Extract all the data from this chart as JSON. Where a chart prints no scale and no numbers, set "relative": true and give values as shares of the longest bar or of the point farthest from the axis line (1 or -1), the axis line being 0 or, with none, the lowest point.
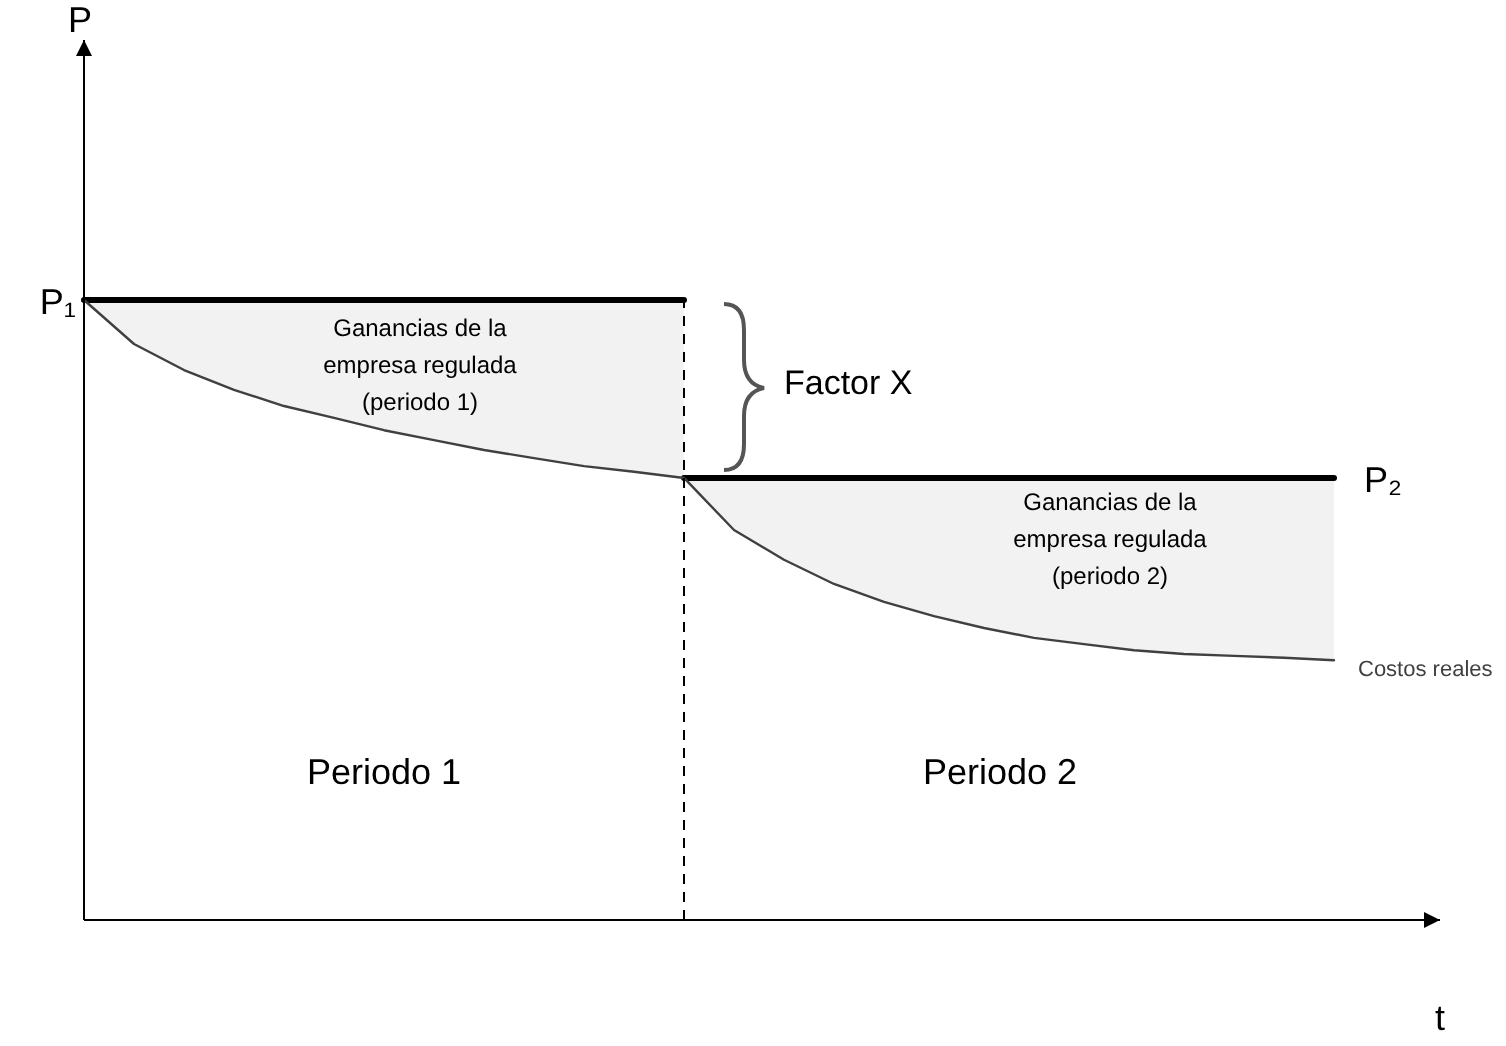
{
  "chart_data": {
    "type": "line",
    "relative": true,
    "xlabel": "t",
    "marker": "none",
    "categories": [
      null,
      null,
      null,
      null,
      null,
      null,
      null,
      null,
      null,
      null,
      null,
      null,
      null,
      null,
      null,
      null,
      null,
      null,
      null,
      null,
      null,
      null,
      null,
      null,
      null,
      null
    ],
    "series": [
      {
        "values": [
          1,
          1,
          1,
          1,
          1,
          1,
          1,
          1,
          1,
          1,
          1,
          1,
          1,
          null,
          null,
          null,
          null,
          null,
          null,
          null,
          null,
          null,
          null,
          null,
          null,
          null
        ],
        "lower": [
          1,
          0.929,
          0.887,
          0.855,
          0.829,
          0.81,
          0.79,
          0.774,
          0.758,
          0.745,
          0.732,
          0.723,
          0.713,
          null,
          null,
          null,
          null,
          null,
          null,
          null,
          null,
          null,
          null,
          null,
          null,
          null
        ],
        "upper": [
          1,
          1,
          1,
          1,
          1,
          1,
          1,
          1,
          1,
          1,
          1,
          1,
          1,
          null,
          null,
          null,
          null,
          null,
          null,
          null,
          null,
          null,
          null,
          null,
          null,
          null
        ],
        "color": "#000000"
      },
      {
        "values": [
          null,
          null,
          null,
          null,
          null,
          null,
          null,
          null,
          null,
          null,
          null,
          null,
          0.713,
          0.713,
          0.713,
          0.713,
          0.713,
          0.713,
          0.713,
          0.713,
          0.713,
          0.713,
          0.713,
          0.713,
          0.713,
          0.713
        ],
        "lower": [
          null,
          null,
          null,
          null,
          null,
          null,
          null,
          null,
          null,
          null,
          null,
          null,
          0.713,
          0.629,
          0.581,
          0.542,
          0.513,
          0.49,
          0.471,
          0.455,
          0.445,
          0.435,
          0.429,
          0.426,
          0.423,
          0.419
        ],
        "upper": [
          null,
          null,
          null,
          null,
          null,
          null,
          null,
          null,
          null,
          null,
          null,
          null,
          0.713,
          0.713,
          0.713,
          0.713,
          0.713,
          0.713,
          0.713,
          0.713,
          0.713,
          0.713,
          0.713,
          0.713,
          0.713,
          0.713
        ],
        "color": "#000000"
      },
      {
        "name": "Costos reales",
        "values": [
          1,
          0.929,
          0.887,
          0.855,
          0.829,
          0.81,
          0.79,
          0.774,
          0.758,
          0.745,
          0.732,
          0.723,
          0.713,
          0.629,
          0.581,
          0.542,
          0.513,
          0.49,
          0.471,
          0.455,
          0.445,
          0.435,
          0.429,
          0.426,
          0.423,
          0.419
        ],
        "color": "#404040"
      }
    ],
    "annotations": [
      "P",
      "P₁",
      "P₂",
      "Ganancias de la\nempresa regulada\n(periodo 1)",
      "Ganancias de la\nempresa regulada\n(periodo 2)",
      "Factor X",
      "Periodo 1",
      "Periodo 2"
    ]
  }
}
